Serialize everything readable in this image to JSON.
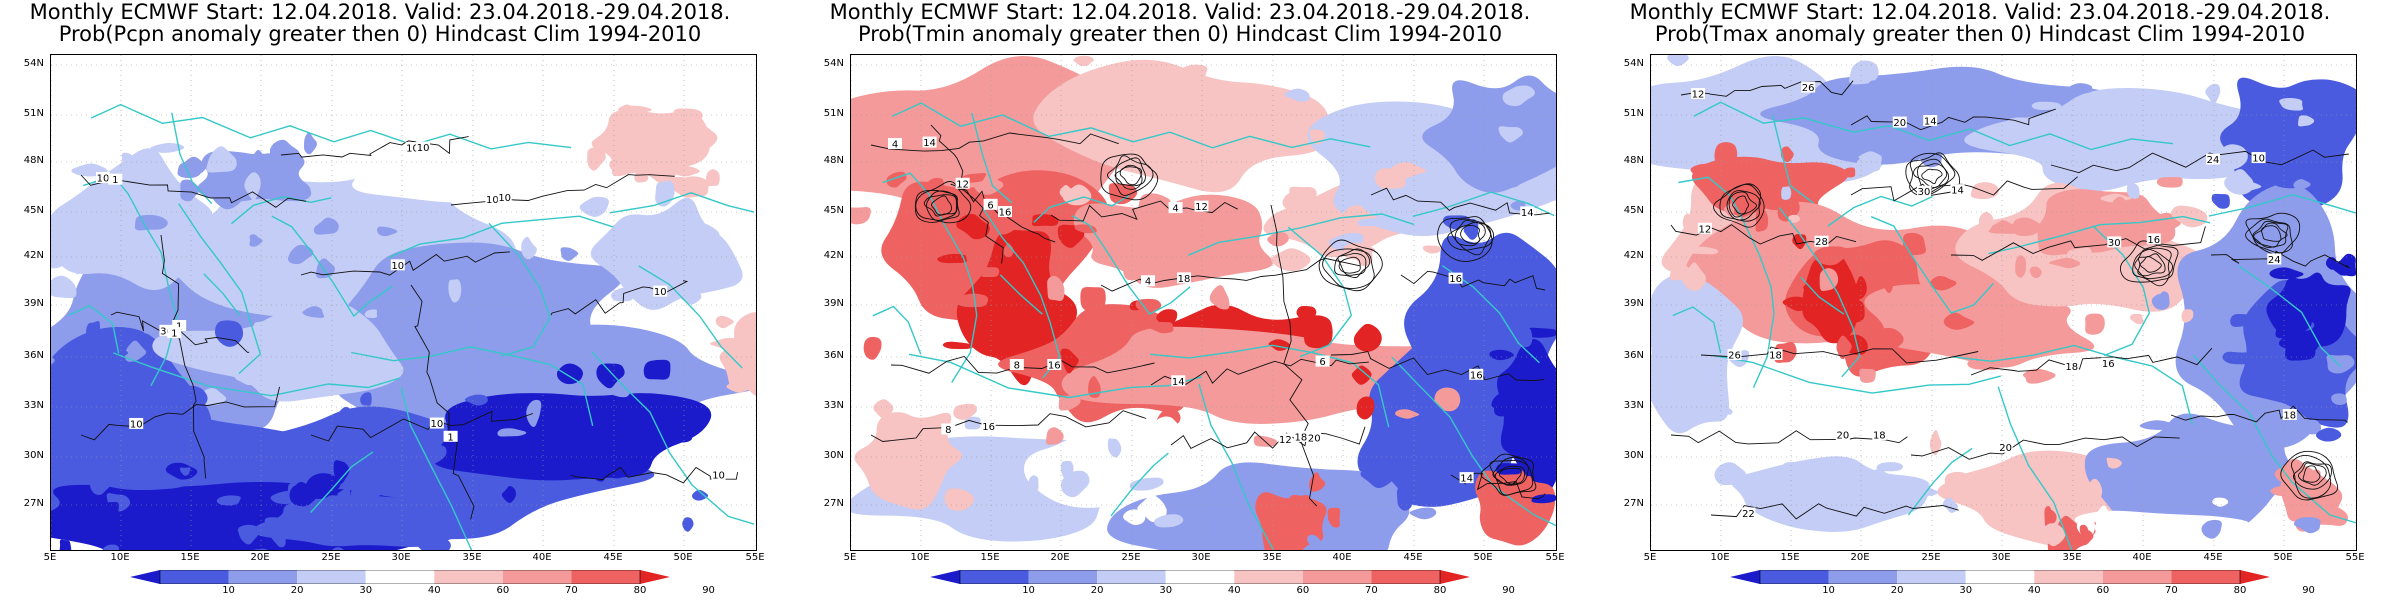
{
  "colors": {
    "bins": [
      "#1b1bcc",
      "#4a5be0",
      "#8e9cec",
      "#c3cdf5",
      "#ffffff",
      "#f7c3c3",
      "#f49a9a",
      "#ef6262",
      "#e22424"
    ],
    "coast": "#35c8c8",
    "contour": "#111111",
    "grid": "#999999"
  },
  "colorbar_labels": [
    "10",
    "20",
    "30",
    "40",
    "60",
    "70",
    "80",
    "90"
  ],
  "lat_ticks": [
    "54N",
    "51N",
    "48N",
    "45N",
    "42N",
    "39N",
    "36N",
    "33N",
    "30N",
    "27N"
  ],
  "lon_ticks": [
    "5E",
    "10E",
    "15E",
    "20E",
    "25E",
    "30E",
    "35E",
    "40E",
    "45E",
    "50E",
    "55E"
  ],
  "panels": [
    {
      "title_line1": "Monthly ECMWF Start: 12.04.2018. Valid: 23.04.2018.-29.04.2018.",
      "title_line2": "Prob(Pcpn anomaly greater then 0) Hindcast Clim 1994-2010",
      "map": {
        "variable": "Pcpn",
        "contour_labels": [
          "10",
          "30",
          "10",
          "10",
          "10",
          "10",
          "10",
          "10",
          "10",
          "1",
          "1",
          "1",
          "1",
          "10",
          "10"
        ]
      }
    },
    {
      "title_line1": "Monthly ECMWF Start: 12.04.2018. Valid: 23.04.2018.-29.04.2018.",
      "title_line2": "Prob(Tmin anomaly greater then 0) Hindcast Clim 1994-2010",
      "map": {
        "variable": "Tmin",
        "contour_labels": [
          "4",
          "6",
          "4",
          "4",
          "8",
          "6",
          "8",
          "12",
          "14",
          "16",
          "16",
          "14",
          "12",
          "18",
          "14",
          "16",
          "12",
          "18",
          "16",
          "14",
          "16",
          "20"
        ]
      }
    },
    {
      "title_line1": "Monthly ECMWF Start: 12.04.2018. Valid: 23.04.2018.-29.04.2018.",
      "title_line2": "Prob(Tmax anomaly greater then 0) Hindcast Clim 1994-2010",
      "map": {
        "variable": "Tmax",
        "contour_labels": [
          "12",
          "14",
          "10",
          "12",
          "14",
          "16",
          "18",
          "16",
          "18",
          "20",
          "18",
          "22",
          "24",
          "26",
          "20",
          "24",
          "28",
          "30",
          "30",
          "26",
          "18",
          "20"
        ]
      }
    }
  ]
}
